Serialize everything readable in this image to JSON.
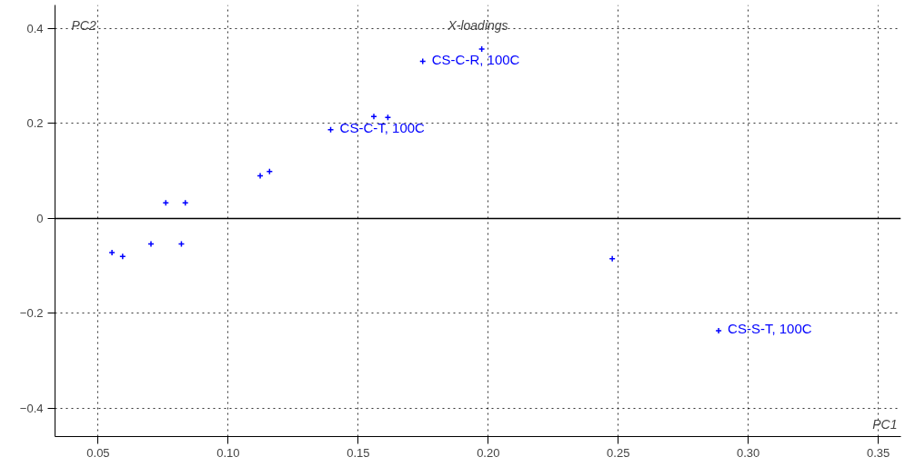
{
  "chart_data": {
    "type": "scatter",
    "title": "X-loadings",
    "xlabel": "PC1",
    "ylabel": "PC2",
    "x": [
      0.1748,
      0.1975,
      0.156,
      0.1614,
      0.1394,
      0.1123,
      0.1159,
      0.076,
      0.0835,
      0.0553,
      0.0594,
      0.0703,
      0.082,
      0.2477,
      0.2886
    ],
    "values": [
      0.331,
      0.357,
      0.215,
      0.213,
      0.187,
      0.09,
      0.099,
      0.033,
      0.033,
      -0.072,
      -0.08,
      -0.054,
      -0.054,
      -0.085,
      -0.237
    ],
    "color": "#0000ff",
    "marker": "cross",
    "xlim": [
      0.0334,
      0.3587
    ],
    "ylim": [
      -0.46,
      0.45
    ],
    "xticks": [
      {
        "value": 0.05,
        "label": "0.05"
      },
      {
        "value": 0.1,
        "label": "0.10"
      },
      {
        "value": 0.15,
        "label": "0.15"
      },
      {
        "value": 0.2,
        "label": "0.20"
      },
      {
        "value": 0.25,
        "label": "0.25"
      },
      {
        "value": 0.3,
        "label": "0.30"
      },
      {
        "value": 0.35,
        "label": "0.35"
      }
    ],
    "yticks": [
      -0.4,
      -0.2,
      0,
      0.2,
      0.4
    ],
    "grid": true,
    "ref_lines": [
      {
        "axis": "y",
        "value": 0,
        "color": "#000000"
      }
    ],
    "annotations": [
      {
        "text": "CS-C-R, 100C",
        "x": 0.1748,
        "y": 0.331
      },
      {
        "text": "CS-C-T, 100C",
        "x": 0.1394,
        "y": 0.187
      },
      {
        "text": "CS-S-T, 100C",
        "x": 0.2886,
        "y": -0.237
      }
    ]
  }
}
